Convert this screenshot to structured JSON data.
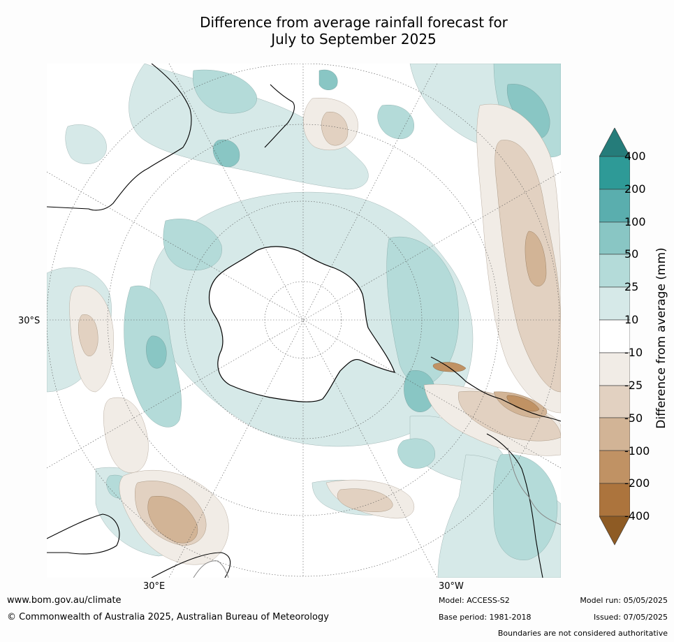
{
  "title_line1": "Difference from average rainfall forecast for",
  "title_line2": "July to September 2025",
  "lat_label": "30°S",
  "lon_labels": {
    "east": "30°E",
    "west": "30°W"
  },
  "colorbar": {
    "title": "Difference from average (mm)",
    "ticks": [
      "400",
      "200",
      "100",
      "50",
      "25",
      "10",
      "-10",
      "-25",
      "-50",
      "-100",
      "-200",
      "-400"
    ],
    "colors": {
      "gt400": "#257c7a",
      "c200_400": "#2e9a97",
      "c100_200": "#5aaeae",
      "c50_100": "#89c6c4",
      "c25_50": "#b4dbd9",
      "c10_25": "#d6e9e8",
      "neutral": "#ffffff",
      "n10_25": "#f1ece6",
      "n25_50": "#e2d1c1",
      "n50_100": "#d2b496",
      "n100_200": "#c09264",
      "n200_400": "#ac743d",
      "lt400": "#8e5b24"
    }
  },
  "footer": {
    "url": "www.bom.gov.au/climate",
    "copyright": "© Commonwealth of Australia 2025, Australian Bureau of Meteorology",
    "model": "Model: ACCESS-S2",
    "base_period": "Base period: 1981-2018",
    "model_run": "Model run: 05/05/2025",
    "issued": "Issued: 07/05/2025",
    "disclaimer": "Boundaries are not considered authoritative"
  }
}
